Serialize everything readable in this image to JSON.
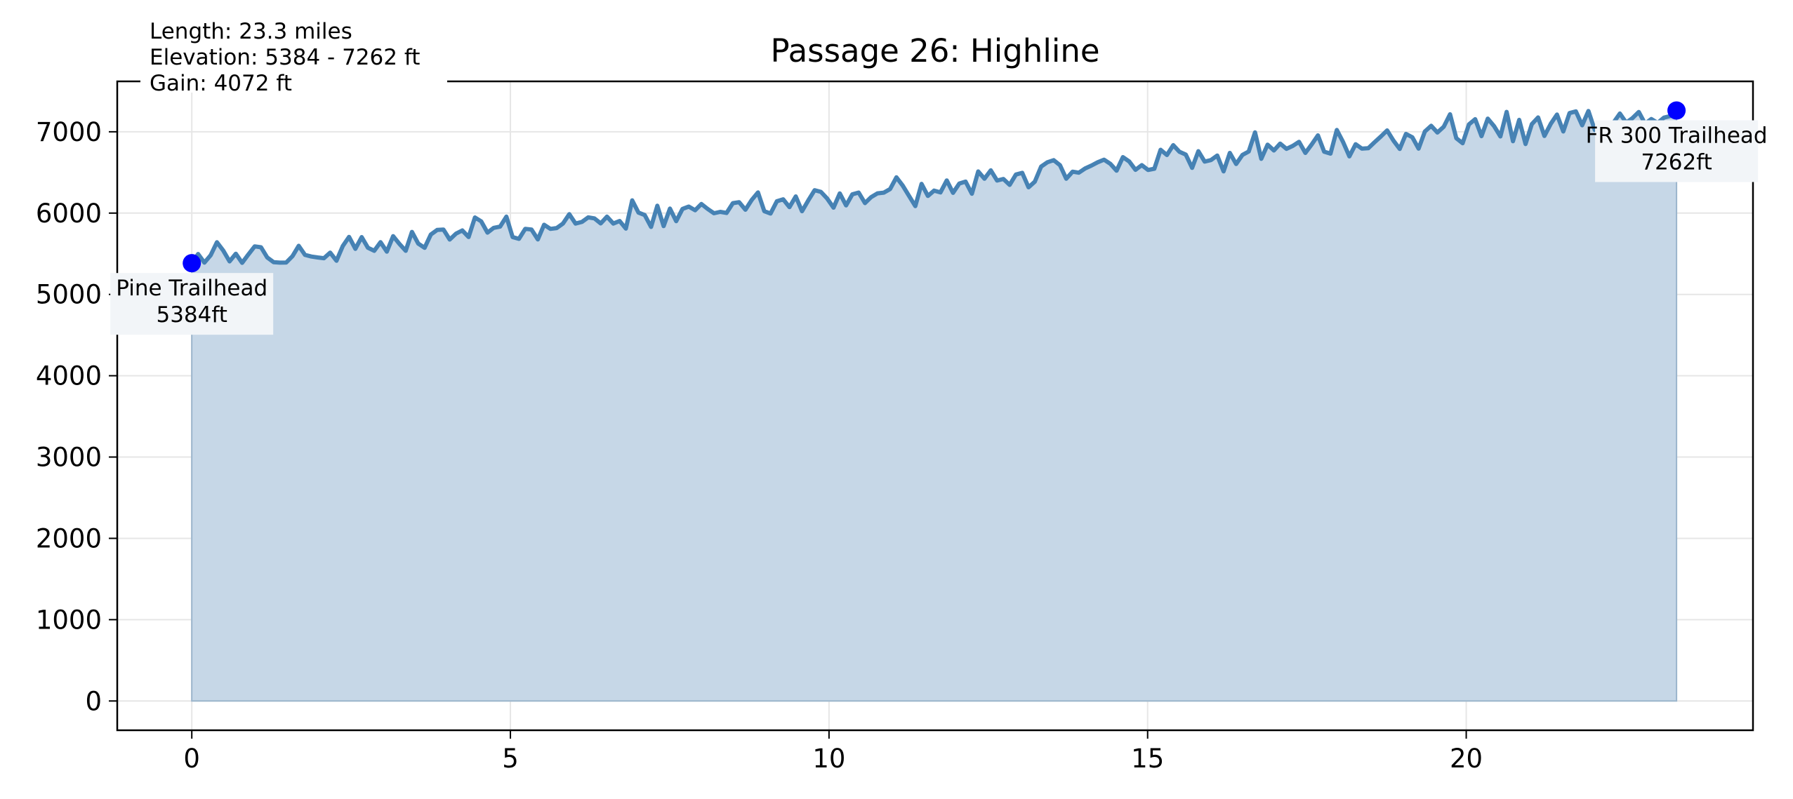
{
  "chart_data": {
    "type": "area",
    "title": "Passage 26: Highline",
    "xlabel": "",
    "ylabel": "",
    "xlim": [
      -1.17,
      24.5
    ],
    "ylim": [
      -360,
      7620
    ],
    "x_ticks": [
      0,
      5,
      10,
      15,
      20
    ],
    "y_ticks": [
      0,
      1000,
      2000,
      3000,
      4000,
      5000,
      6000,
      7000
    ],
    "grid": true,
    "line_color": "#4682b4",
    "fill_color": "#c6d7e7",
    "marker_color": "#0000ff",
    "info_lines": [
      "Length: 23.3 miles",
      "Elevation: 5384 - 7262 ft",
      "Gain: 4072 ft"
    ],
    "x_start": 0,
    "x_end": 23.3,
    "elevation": [
      5384,
      5497,
      5391,
      5482,
      5642,
      5539,
      5406,
      5500,
      5388,
      5493,
      5591,
      5580,
      5454,
      5397,
      5391,
      5392,
      5470,
      5598,
      5486,
      5466,
      5455,
      5445,
      5514,
      5414,
      5595,
      5707,
      5561,
      5705,
      5574,
      5537,
      5643,
      5526,
      5717,
      5622,
      5537,
      5769,
      5625,
      5573,
      5737,
      5793,
      5797,
      5675,
      5748,
      5787,
      5706,
      5946,
      5899,
      5760,
      5819,
      5833,
      5957,
      5705,
      5683,
      5807,
      5798,
      5676,
      5857,
      5806,
      5816,
      5871,
      5987,
      5871,
      5891,
      5947,
      5935,
      5873,
      5957,
      5871,
      5903,
      5809,
      6157,
      6006,
      5976,
      5830,
      6090,
      5840,
      6056,
      5901,
      6052,
      6080,
      6035,
      6112,
      6052,
      5998,
      6015,
      6002,
      6122,
      6134,
      6041,
      6162,
      6254,
      6023,
      5995,
      6146,
      6170,
      6073,
      6205,
      6023,
      6157,
      6282,
      6261,
      6178,
      6067,
      6242,
      6095,
      6231,
      6253,
      6123,
      6197,
      6243,
      6252,
      6296,
      6440,
      6339,
      6212,
      6086,
      6360,
      6211,
      6277,
      6254,
      6402,
      6249,
      6364,
      6387,
      6238,
      6512,
      6423,
      6526,
      6400,
      6420,
      6347,
      6474,
      6495,
      6317,
      6386,
      6572,
      6625,
      6651,
      6589,
      6423,
      6510,
      6497,
      6549,
      6585,
      6625,
      6657,
      6606,
      6522,
      6688,
      6636,
      6532,
      6590,
      6530,
      6546,
      6779,
      6714,
      6836,
      6754,
      6719,
      6556,
      6762,
      6633,
      6652,
      6708,
      6513,
      6740,
      6604,
      6715,
      6757,
      6993,
      6668,
      6842,
      6770,
      6855,
      6790,
      6826,
      6876,
      6740,
      6843,
      6956,
      6755,
      6731,
      7022,
      6875,
      6698,
      6847,
      6793,
      6798,
      6871,
      6942,
      7017,
      6893,
      6789,
      6974,
      6933,
      6793,
      7003,
      7074,
      6991,
      7062,
      7215,
      6921,
      6859,
      7091,
      7155,
      6946,
      7162,
      7070,
      6943,
      7245,
      6884,
      7146,
      6850,
      7095,
      7177,
      6949,
      7097,
      7212,
      7004,
      7230,
      7251,
      7080,
      7256,
      7022,
      7060,
      7112,
      7115,
      7225,
      7113,
      7168,
      7244,
      7100,
      7157,
      7109,
      7174,
      7193,
      7262
    ],
    "annotations": [
      {
        "name": "Pine Trailhead",
        "x": 0,
        "y": 5384,
        "value_text": "5384ft",
        "placement": "below"
      },
      {
        "name": "FR 300 Trailhead",
        "x": 23.3,
        "y": 7262,
        "value_text": "7262ft",
        "placement": "below"
      }
    ]
  }
}
